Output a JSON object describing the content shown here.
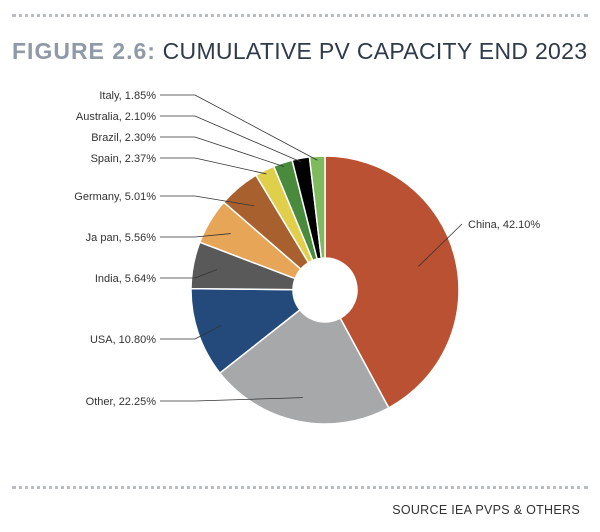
{
  "figure": {
    "number": "FIGURE 2.6:",
    "title": "CUMULATIVE PV CAPACITY END 2023",
    "source": "SOURCE IEA PVPS & OTHERS"
  },
  "chart_data": {
    "type": "pie",
    "donut": true,
    "title": "CUMULATIVE PV CAPACITY END 2023",
    "unit": "%",
    "slices": [
      {
        "label": "China, 42.10%",
        "name": "China",
        "value": 42.1,
        "color": "#bb5133"
      },
      {
        "label": "Other, 22.25%",
        "name": "Other",
        "value": 22.25,
        "color": "#a6a8aa"
      },
      {
        "label": "USA, 10.80%",
        "name": "USA",
        "value": 10.8,
        "color": "#244a7c"
      },
      {
        "label": "India, 5.64%",
        "name": "India",
        "value": 5.64,
        "color": "#595959"
      },
      {
        "label": "Ja pan, 5.56%",
        "name": "Japan",
        "value": 5.56,
        "color": "#e7a558"
      },
      {
        "label": "Germany, 5.01%",
        "name": "Germany",
        "value": 5.01,
        "color": "#a8612e"
      },
      {
        "label": "Spain, 2.37%",
        "name": "Spain",
        "value": 2.37,
        "color": "#e0cf4a"
      },
      {
        "label": "Brazil, 2.30%",
        "name": "Brazil",
        "value": 2.3,
        "color": "#4a8a3d"
      },
      {
        "label": "Australia, 2.10%",
        "name": "Australia",
        "value": 2.1,
        "color": "#000000"
      },
      {
        "label": "Italy, 1.85%",
        "name": "Italy",
        "value": 1.85,
        "color": "#7dbb5d"
      }
    ]
  }
}
